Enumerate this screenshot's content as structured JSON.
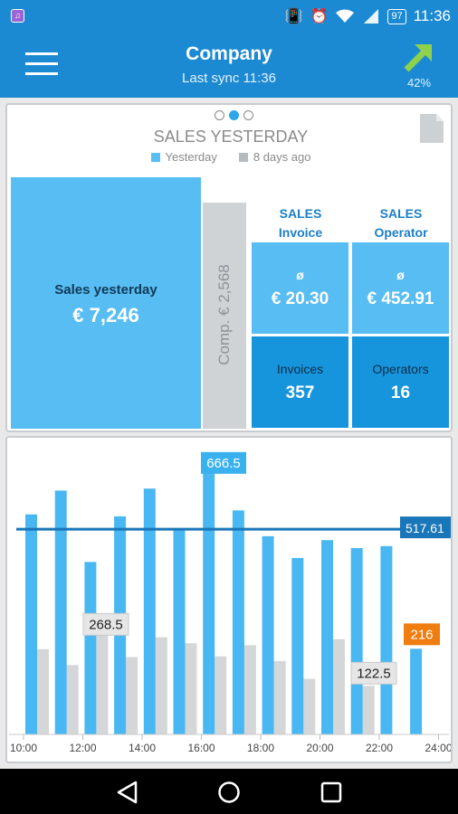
{
  "status_bar": {
    "time": "11:36",
    "battery": "97"
  },
  "app_bar": {
    "title": "Company",
    "subtitle": "Last sync 11:36",
    "trend_percent": "42%"
  },
  "summary_card": {
    "title": "SALES YESTERDAY",
    "legend": [
      {
        "label": "Yesterday",
        "color": "#57bdf2"
      },
      {
        "label": "8 days ago",
        "color": "#b5bbbf"
      }
    ],
    "sales_label": "Sales yesterday",
    "sales_value": "€ 7,246",
    "comparison": "Comp. € 2,568",
    "column_headers": [
      {
        "line1": "SALES",
        "line2": "Invoice"
      },
      {
        "line1": "SALES",
        "line2": "Operator"
      }
    ],
    "tiles": [
      {
        "label": "ø",
        "value": "€ 20.30"
      },
      {
        "label": "ø",
        "value": "€ 452.91"
      },
      {
        "label": "Invoices",
        "value": "357"
      },
      {
        "label": "Operators",
        "value": "16"
      }
    ]
  },
  "chart_data": {
    "type": "bar",
    "series": [
      {
        "values": [
          555,
          615,
          435,
          550,
          620,
          515,
          666.5,
          565,
          500,
          445,
          490,
          470,
          475,
          216
        ]
      },
      {
        "values": [
          215,
          175,
          268.5,
          195,
          245,
          230,
          197,
          225,
          185,
          140,
          240,
          122.5
        ]
      }
    ],
    "x_tick_labels": [
      "10:00",
      "12:00",
      "14:00",
      "16:00",
      "18:00",
      "20:00",
      "22:00",
      "24:00"
    ],
    "reference_line": {
      "value": 517.61,
      "label": "517.61"
    },
    "callouts": [
      {
        "label": "666.5",
        "value": 666.5
      },
      {
        "label": "268.5",
        "value": 268.5
      },
      {
        "label": "122.5",
        "value": 122.5
      },
      {
        "label": "216",
        "value": 216
      }
    ],
    "ylim": [
      0,
      730
    ],
    "colors": {
      "today": "#49b8f2",
      "prior": "#d4d6d8",
      "line": "#1976b8",
      "highlight": "#3ab1ef",
      "current": "#ef7d10"
    }
  }
}
